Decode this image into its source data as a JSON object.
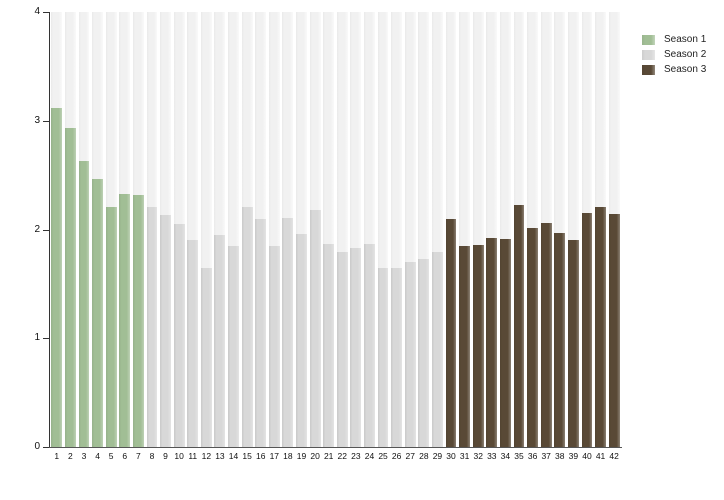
{
  "chart_data": {
    "type": "bar",
    "title": "",
    "xlabel": "",
    "ylabel": "",
    "ylim": [
      0,
      4
    ],
    "y_ticks": [
      "0",
      "1",
      "2",
      "3",
      "4"
    ],
    "grid": false,
    "legend_position": "top-right",
    "background_track_color": "#f1f1f1",
    "categories": [
      1,
      2,
      3,
      4,
      5,
      6,
      7,
      8,
      9,
      10,
      11,
      12,
      13,
      14,
      15,
      16,
      17,
      18,
      19,
      20,
      21,
      22,
      23,
      24,
      25,
      26,
      27,
      28,
      29,
      30,
      31,
      32,
      33,
      34,
      35,
      36,
      37,
      38,
      39,
      40,
      41,
      42
    ],
    "values": [
      3.12,
      2.93,
      2.63,
      2.46,
      2.21,
      2.33,
      2.32,
      2.21,
      2.13,
      2.05,
      1.9,
      1.65,
      1.95,
      1.85,
      2.21,
      2.1,
      1.85,
      2.11,
      1.96,
      2.18,
      1.87,
      1.79,
      1.83,
      1.87,
      1.65,
      1.65,
      1.7,
      1.73,
      1.79,
      2.1,
      1.85,
      1.86,
      1.92,
      1.91,
      2.23,
      2.01,
      2.06,
      1.97,
      1.9,
      2.15,
      2.21,
      2.14
    ],
    "groups": [
      {
        "name": "Season 1",
        "color": "#a1be95",
        "from": 1,
        "to": 7
      },
      {
        "name": "Season 2",
        "color": "#d8d8d8",
        "from": 8,
        "to": 29
      },
      {
        "name": "Season 3",
        "color": "#594936",
        "from": 30,
        "to": 42
      }
    ]
  }
}
